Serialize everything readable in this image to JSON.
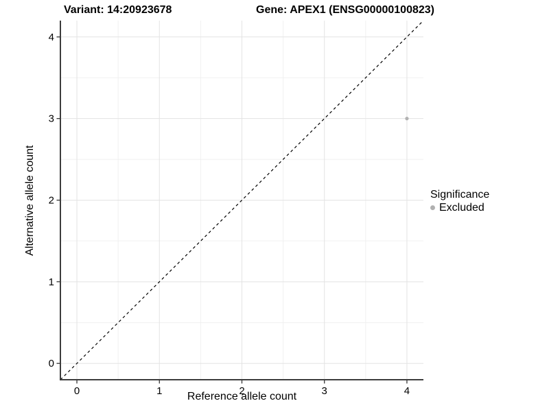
{
  "titles": {
    "variant": "Variant: 14:20923678",
    "gene": "Gene: APEX1 (ENSG00000100823)"
  },
  "chart_data": {
    "type": "scatter",
    "title_left": "Variant: 14:20923678",
    "title_right": "Gene: APEX1 (ENSG00000100823)",
    "xlabel": "Reference allele count",
    "ylabel": "Alternative allele count",
    "xlim": [
      -0.2,
      4.2
    ],
    "ylim": [
      -0.2,
      4.2
    ],
    "x_ticks": [
      0,
      1,
      2,
      3,
      4
    ],
    "y_ticks": [
      0,
      1,
      2,
      3,
      4
    ],
    "minor_ticks": [
      0.5,
      1.5,
      2.5,
      3.5
    ],
    "grid": "major+minor",
    "identity_line": {
      "slope": 1,
      "intercept": 0,
      "style": "dashed",
      "color": "#000000"
    },
    "series": [
      {
        "name": "Excluded",
        "color": "#b2b2b2",
        "points": [
          {
            "x": 4,
            "y": 3
          }
        ]
      }
    ],
    "legend": {
      "title": "Significance",
      "position": "right",
      "items": [
        {
          "label": "Excluded",
          "color": "#b0b0b0"
        }
      ]
    }
  },
  "colors": {
    "background": "#ffffff",
    "grid_major": "#e3e3e3",
    "grid_minor": "#f0f0f0",
    "axis_line": "#3c3c3c",
    "tick_mark": "#333333",
    "tick_text": "#000000",
    "point": "#b2b2b2",
    "identity_line": "#000000"
  }
}
